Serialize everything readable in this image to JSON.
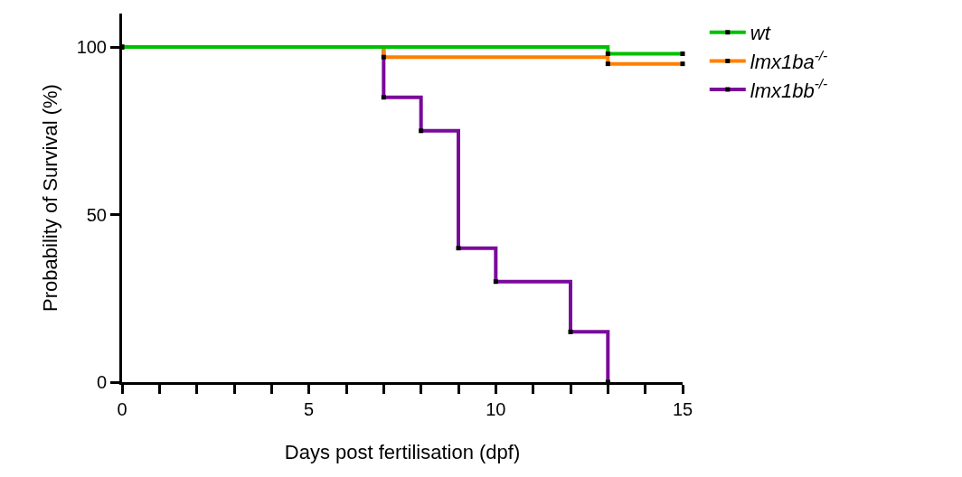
{
  "chart_data": {
    "type": "step",
    "xlabel": "Days post fertilisation (dpf)",
    "ylabel": "Probability of Survival (%)",
    "xlim": [
      0,
      15
    ],
    "ylim": [
      0,
      110
    ],
    "xticks": [
      0,
      {
        "value": 1,
        "label": null
      },
      {
        "value": 2,
        "label": null
      },
      {
        "value": 3,
        "label": null
      },
      {
        "value": 4,
        "label": null
      },
      5,
      {
        "value": 6,
        "label": null
      },
      {
        "value": 7,
        "label": null
      },
      {
        "value": 8,
        "label": null
      },
      {
        "value": 9,
        "label": null
      },
      10,
      {
        "value": 11,
        "label": null
      },
      {
        "value": 12,
        "label": null
      },
      {
        "value": 13,
        "label": null
      },
      {
        "value": 14,
        "label": null
      },
      15
    ],
    "yticks": [
      0,
      50,
      100
    ],
    "grid": false,
    "legend": "top right",
    "marker": "square",
    "line_style": "solid",
    "series": [
      {
        "name": "wt",
        "color": "#00c000",
        "x": [
          0,
          13,
          15
        ],
        "values": [
          100,
          98,
          98
        ]
      },
      {
        "name": "lmx1ba$^{-/-}$",
        "color": "#ff8000",
        "x": [
          0,
          7,
          13,
          15
        ],
        "values": [
          100,
          97,
          95,
          95
        ]
      },
      {
        "name": "lmx1bb$^{-/-}$",
        "color": "#7a0a9a",
        "x": [
          0,
          7,
          8,
          9,
          10,
          12,
          13
        ],
        "values": [
          100,
          85,
          75,
          40,
          30,
          15,
          0
        ]
      }
    ]
  }
}
